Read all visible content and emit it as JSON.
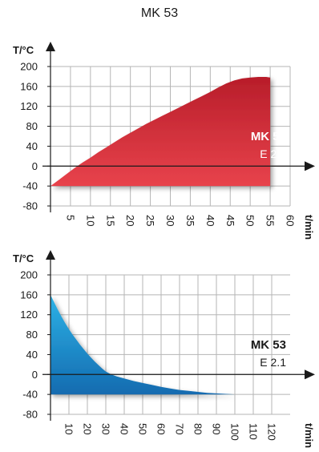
{
  "title": "MK 53",
  "colors": {
    "heating_light": "#e8434c",
    "heating_dark": "#b81d2a",
    "cooling_light": "#2db2e6",
    "cooling_dark": "#136bb0",
    "grid": "#b5b5b5",
    "axis": "#1a1a1a"
  },
  "chart_data": [
    {
      "type": "area",
      "name": "heating",
      "ylabel": "T/°C",
      "xlabel": "t/min",
      "ylim": [
        -80,
        200
      ],
      "xlim": [
        0,
        60
      ],
      "yticks": [
        -80,
        -40,
        0,
        40,
        80,
        120,
        160,
        200
      ],
      "xticks": [
        5,
        10,
        15,
        20,
        25,
        30,
        35,
        40,
        45,
        50,
        55,
        60
      ],
      "grid": true,
      "label_model": "MK 53",
      "label_sub": "E 2.1",
      "x": [
        0,
        2,
        4,
        6,
        8,
        10,
        12,
        14,
        16,
        18,
        20,
        22,
        24,
        26,
        28,
        30,
        32,
        34,
        36,
        38,
        40,
        42,
        44,
        46,
        48,
        50,
        52,
        53,
        54,
        55
      ],
      "y": [
        -40,
        -28,
        -16,
        -4,
        7,
        17,
        28,
        38,
        48,
        58,
        67,
        76,
        85,
        93,
        101,
        109,
        117,
        125,
        133,
        141,
        149,
        158,
        166,
        172,
        176,
        178,
        179,
        179,
        179,
        178
      ],
      "base": -40
    },
    {
      "type": "area",
      "name": "cooling",
      "ylabel": "T/°C",
      "xlabel": "t/min",
      "ylim": [
        -80,
        200
      ],
      "xlim": [
        0,
        130
      ],
      "yticks": [
        -80,
        -40,
        0,
        40,
        80,
        120,
        160,
        200
      ],
      "xticks": [
        10,
        20,
        30,
        40,
        50,
        60,
        70,
        80,
        90,
        100,
        110,
        120
      ],
      "grid": true,
      "label_model": "MK 53",
      "label_sub": "E 2.1",
      "x": [
        0,
        2,
        4,
        6,
        8,
        10,
        12,
        14,
        16,
        18,
        20,
        22,
        24,
        26,
        28,
        30,
        33,
        36,
        40,
        45,
        50,
        55,
        60,
        65,
        70,
        75,
        80,
        85,
        90,
        95,
        100
      ],
      "y": [
        160,
        145,
        130,
        116,
        103,
        91,
        80,
        70,
        60,
        51,
        42,
        34,
        26,
        19,
        12,
        6,
        0,
        -4,
        -8,
        -13,
        -17,
        -21,
        -25,
        -28,
        -31,
        -33,
        -35,
        -37,
        -38,
        -39,
        -40
      ],
      "base": -40
    }
  ]
}
